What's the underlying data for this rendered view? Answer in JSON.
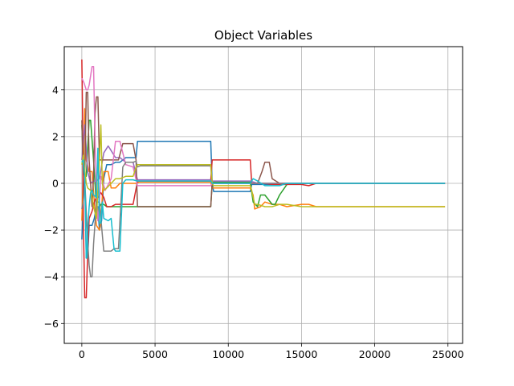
{
  "chart_data": {
    "type": "line",
    "title": "Object Variables",
    "xlabel": "",
    "ylabel": "",
    "xlim": [
      -1200,
      26000
    ],
    "ylim": [
      -6.85,
      5.85
    ],
    "xticks": [
      0,
      5000,
      10000,
      15000,
      20000,
      25000
    ],
    "xtick_labels": [
      "0",
      "5000",
      "10000",
      "15000",
      "20000",
      "25000"
    ],
    "yticks": [
      -6,
      -4,
      -2,
      0,
      2,
      4
    ],
    "ytick_labels": [
      "−6",
      "−4",
      "−2",
      "0",
      "2",
      "4"
    ],
    "grid": true,
    "legend": "none",
    "series": [
      {
        "color": "#1f77b4",
        "x": [
          0,
          60,
          120,
          200,
          300,
          400,
          500,
          700,
          850,
          1000,
          1100,
          1200,
          1350,
          1500,
          1700,
          2000,
          2300,
          2600,
          2800,
          3000,
          3500,
          3700,
          3800,
          4000,
          6000,
          8800,
          8900,
          9000,
          11000,
          11500,
          11600,
          12000,
          12500,
          13000,
          13500,
          14000,
          16000,
          24800
        ],
        "y": [
          -2.4,
          -1.5,
          -0.3,
          0.3,
          -3.2,
          -3.2,
          -1.8,
          -1.8,
          -1.5,
          -1.0,
          -1.0,
          -2.0,
          -1.6,
          0.2,
          0.8,
          0.8,
          0.9,
          0.9,
          1.0,
          1.1,
          1.1,
          1.1,
          1.8,
          1.8,
          1.8,
          1.8,
          0.0,
          -0.35,
          -0.35,
          -0.35,
          -0.05,
          -0.05,
          -0.05,
          -0.05,
          -0.05,
          0.0,
          0.0,
          0.0
        ]
      },
      {
        "color": "#ff7f0e",
        "x": [
          0,
          100,
          200,
          300,
          500,
          700,
          900,
          1000,
          1200,
          1300,
          1500,
          1800,
          2000,
          2300,
          2600,
          2800,
          3000,
          3500,
          3700,
          3900,
          6000,
          8800,
          8900,
          9000,
          11000,
          11500,
          11700,
          11800,
          12200,
          12500,
          13000,
          13500,
          14000,
          15000,
          15500,
          16000,
          17000,
          24800
        ],
        "y": [
          -1.6,
          0.5,
          3.2,
          1.0,
          0.5,
          0.5,
          -1.2,
          -1.8,
          -2.0,
          -1.6,
          0.5,
          0.5,
          -0.2,
          -0.2,
          0.0,
          0.0,
          0.0,
          0.0,
          0.0,
          0.05,
          0.05,
          0.05,
          -0.2,
          -0.2,
          -0.2,
          -0.2,
          -0.5,
          -1.1,
          -1.0,
          -0.8,
          -0.9,
          -0.9,
          -1.0,
          -0.9,
          -0.9,
          -1.0,
          -1.0,
          -1.0
        ]
      },
      {
        "color": "#2ca02c",
        "x": [
          0,
          100,
          200,
          300,
          500,
          600,
          800,
          1000,
          1100,
          1300,
          1500,
          1700,
          2000,
          2200,
          2500,
          2800,
          3000,
          3500,
          3700,
          3900,
          6000,
          8800,
          8900,
          9000,
          11000,
          11500,
          11700,
          12000,
          12200,
          12500,
          13000,
          13200,
          13500,
          14000,
          15000,
          16000,
          24800
        ],
        "y": [
          2.5,
          1.0,
          0.3,
          0.3,
          2.7,
          2.7,
          1.0,
          -1.0,
          -1.2,
          -0.9,
          -0.9,
          -1.0,
          -1.0,
          -1.0,
          -1.0,
          -1.0,
          -1.0,
          -1.0,
          -1.0,
          -1.0,
          -1.0,
          -1.0,
          0.0,
          0.05,
          0.05,
          0.05,
          -0.8,
          -1.0,
          -0.5,
          -0.5,
          -0.9,
          -0.9,
          -0.5,
          -0.05,
          0.0,
          0.0,
          0.0
        ]
      },
      {
        "color": "#d62728",
        "x": [
          0,
          50,
          100,
          200,
          300,
          400,
          500,
          700,
          900,
          1100,
          1300,
          1500,
          1700,
          2000,
          2300,
          2500,
          2800,
          3000,
          3500,
          3800,
          4000,
          6000,
          8800,
          8900,
          9000,
          10000,
          11000,
          11500,
          11600,
          12000,
          12500,
          13000,
          14000,
          15000,
          15500,
          16000,
          24800
        ],
        "y": [
          5.3,
          3.0,
          -1.5,
          -4.9,
          -4.9,
          -3.0,
          -1.5,
          -1.2,
          -0.7,
          -0.6,
          -0.4,
          -0.6,
          -1.0,
          -1.0,
          -0.9,
          -0.9,
          -0.9,
          -0.9,
          -0.9,
          0.1,
          0.1,
          0.1,
          0.1,
          1.0,
          1.0,
          1.0,
          1.0,
          1.0,
          0.0,
          0.0,
          0.0,
          -0.05,
          -0.05,
          -0.05,
          -0.1,
          0.0,
          0.0
        ]
      },
      {
        "color": "#9467bd",
        "x": [
          0,
          200,
          400,
          600,
          800,
          1000,
          1200,
          1500,
          1800,
          2000,
          2300,
          2600,
          3000,
          3500,
          3800,
          4000,
          6000,
          8800,
          8900,
          9000,
          11000,
          11500,
          12000,
          13000,
          14000,
          24800
        ],
        "y": [
          1.0,
          2.5,
          0.5,
          0.0,
          0.1,
          0.1,
          0.2,
          1.3,
          1.6,
          1.4,
          1.1,
          1.1,
          0.9,
          0.9,
          0.15,
          0.15,
          0.15,
          0.15,
          0.1,
          0.1,
          0.1,
          0.1,
          0.0,
          0.0,
          0.0,
          0.0
        ]
      },
      {
        "color": "#8c564b",
        "x": [
          0,
          100,
          200,
          300,
          400,
          500,
          700,
          800,
          900,
          1000,
          1100,
          1200,
          1400,
          1600,
          2000,
          2500,
          2800,
          3000,
          3500,
          3700,
          3800,
          4000,
          6000,
          8800,
          8900,
          9000,
          11000,
          11500,
          12000,
          12300,
          12500,
          12800,
          13000,
          13500,
          14000,
          24800
        ],
        "y": [
          2.7,
          0.5,
          0.3,
          3.9,
          3.9,
          1.0,
          -1.0,
          0.3,
          3.0,
          3.7,
          3.7,
          1.0,
          1.0,
          1.0,
          1.0,
          1.0,
          1.7,
          1.7,
          1.7,
          1.0,
          -1.0,
          -1.0,
          -1.0,
          -1.0,
          0.0,
          0.0,
          0.0,
          0.0,
          0.0,
          0.5,
          0.9,
          0.9,
          0.2,
          0.0,
          0.0,
          0.0
        ]
      },
      {
        "color": "#e377c2",
        "x": [
          0,
          150,
          300,
          400,
          500,
          700,
          800,
          900,
          1000,
          1100,
          1200,
          1300,
          1600,
          2000,
          2300,
          2600,
          3000,
          3500,
          3800,
          4000,
          6000,
          8800,
          8900,
          9000,
          11000,
          12000,
          13000,
          24800
        ],
        "y": [
          4.5,
          4.3,
          4.0,
          4.0,
          4.2,
          5.0,
          5.0,
          2.0,
          -0.5,
          -1.6,
          -0.8,
          0.3,
          -0.3,
          0.2,
          1.8,
          1.8,
          0.8,
          0.7,
          -0.1,
          -0.1,
          -0.1,
          -0.1,
          0.0,
          0.0,
          0.0,
          0.0,
          0.0,
          0.0
        ]
      },
      {
        "color": "#7f7f7f",
        "x": [
          0,
          100,
          200,
          300,
          400,
          500,
          600,
          700,
          800,
          1000,
          1200,
          1300,
          1500,
          1700,
          2000,
          2200,
          2500,
          2800,
          3000,
          3500,
          3700,
          3800,
          4000,
          6000,
          8800,
          8900,
          9000,
          11000,
          12000,
          13000,
          24800
        ],
        "y": [
          -1.1,
          -0.8,
          0.2,
          -1.2,
          -2.5,
          -3.5,
          -4.0,
          -4.0,
          -2.6,
          -0.8,
          -0.8,
          -1.5,
          -2.9,
          -2.9,
          -2.9,
          -2.8,
          -2.8,
          0.7,
          0.9,
          0.9,
          0.95,
          0.7,
          0.75,
          0.75,
          0.75,
          0.0,
          0.0,
          0.0,
          0.0,
          0.0,
          0.0
        ]
      },
      {
        "color": "#bcbd22",
        "x": [
          0,
          100,
          200,
          300,
          400,
          600,
          800,
          1000,
          1200,
          1300,
          1400,
          1500,
          1700,
          2000,
          2300,
          2600,
          3000,
          3500,
          3700,
          3800,
          4000,
          6000,
          8800,
          8900,
          9000,
          11000,
          11500,
          11600,
          11800,
          12000,
          12500,
          13000,
          13500,
          14000,
          15000,
          16000,
          17000,
          24800
        ],
        "y": [
          0.8,
          1.2,
          0.6,
          0.0,
          -0.2,
          -0.3,
          -1.0,
          -1.5,
          1.0,
          2.5,
          0.0,
          -0.3,
          -0.2,
          0.0,
          0.2,
          0.2,
          0.3,
          0.3,
          0.7,
          0.8,
          0.8,
          0.8,
          0.8,
          0.0,
          -0.1,
          -0.1,
          -0.1,
          -0.3,
          -0.9,
          -0.9,
          -1.0,
          -1.0,
          -0.9,
          -0.9,
          -1.0,
          -1.0,
          -1.0,
          -1.0
        ]
      },
      {
        "color": "#17becf",
        "x": [
          0,
          100,
          200,
          250,
          300,
          350,
          400,
          500,
          600,
          700,
          800,
          1000,
          1100,
          1200,
          1300,
          1400,
          1500,
          1800,
          2000,
          2200,
          2300,
          2600,
          2800,
          3000,
          3500,
          3800,
          4000,
          6000,
          8800,
          8900,
          9000,
          11000,
          11500,
          11700,
          12000,
          12500,
          13000,
          13500,
          14000,
          15000,
          16000,
          24800
        ],
        "y": [
          0.9,
          1.0,
          0.2,
          -1.0,
          -3.2,
          -3.2,
          -2.0,
          -1.0,
          -0.4,
          -0.3,
          -0.5,
          -0.6,
          1.5,
          -1.7,
          -1.7,
          -0.8,
          -1.5,
          -1.6,
          -1.5,
          -2.8,
          -2.9,
          -2.9,
          0.0,
          0.15,
          0.15,
          0.1,
          0.1,
          0.1,
          0.1,
          0.0,
          0.0,
          0.0,
          0.0,
          0.2,
          0.1,
          -0.1,
          -0.1,
          -0.1,
          0.0,
          0.0,
          0.0,
          0.0
        ]
      }
    ]
  }
}
